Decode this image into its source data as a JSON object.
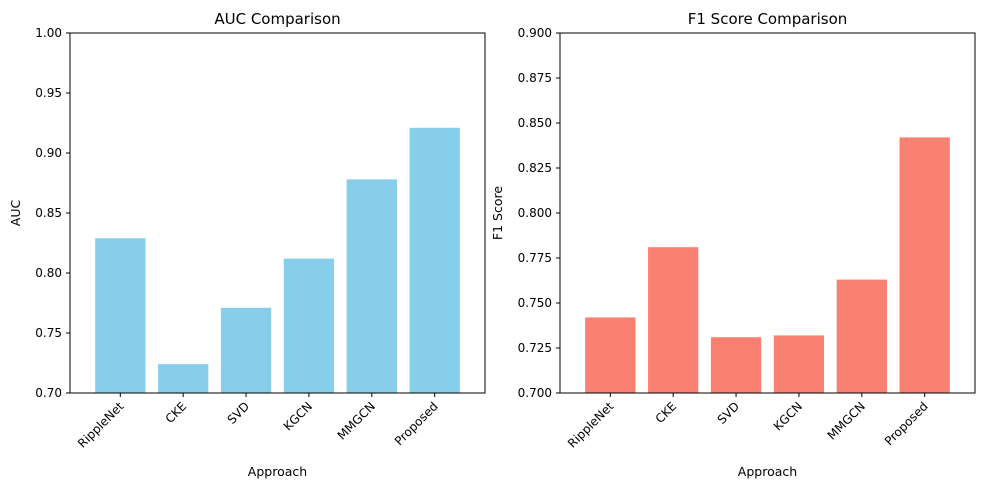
{
  "chart_data": [
    {
      "type": "bar",
      "title": "AUC Comparison",
      "xlabel": "Approach",
      "ylabel": "AUC",
      "categories": [
        "RippleNet",
        "CKE",
        "SVD",
        "KGCN",
        "MMGCN",
        "Proposed"
      ],
      "values": [
        0.829,
        0.724,
        0.771,
        0.812,
        0.878,
        0.921
      ],
      "ylim": [
        0.7,
        1.0
      ],
      "yticks": [
        "0.70",
        "0.75",
        "0.80",
        "0.85",
        "0.90",
        "0.95",
        "1.00"
      ],
      "color": "#87ceeb",
      "grid": false,
      "legend": "none"
    },
    {
      "type": "bar",
      "title": "F1 Score Comparison",
      "xlabel": "Approach",
      "ylabel": "F1 Score",
      "categories": [
        "RippleNet",
        "CKE",
        "SVD",
        "KGCN",
        "MMGCN",
        "Proposed"
      ],
      "values": [
        0.742,
        0.781,
        0.731,
        0.732,
        0.763,
        0.842
      ],
      "ylim": [
        0.7,
        0.9
      ],
      "yticks": [
        "0.700",
        "0.725",
        "0.750",
        "0.775",
        "0.800",
        "0.825",
        "0.850",
        "0.875",
        "0.900"
      ],
      "color": "#fa8072",
      "grid": false,
      "legend": "none"
    }
  ]
}
